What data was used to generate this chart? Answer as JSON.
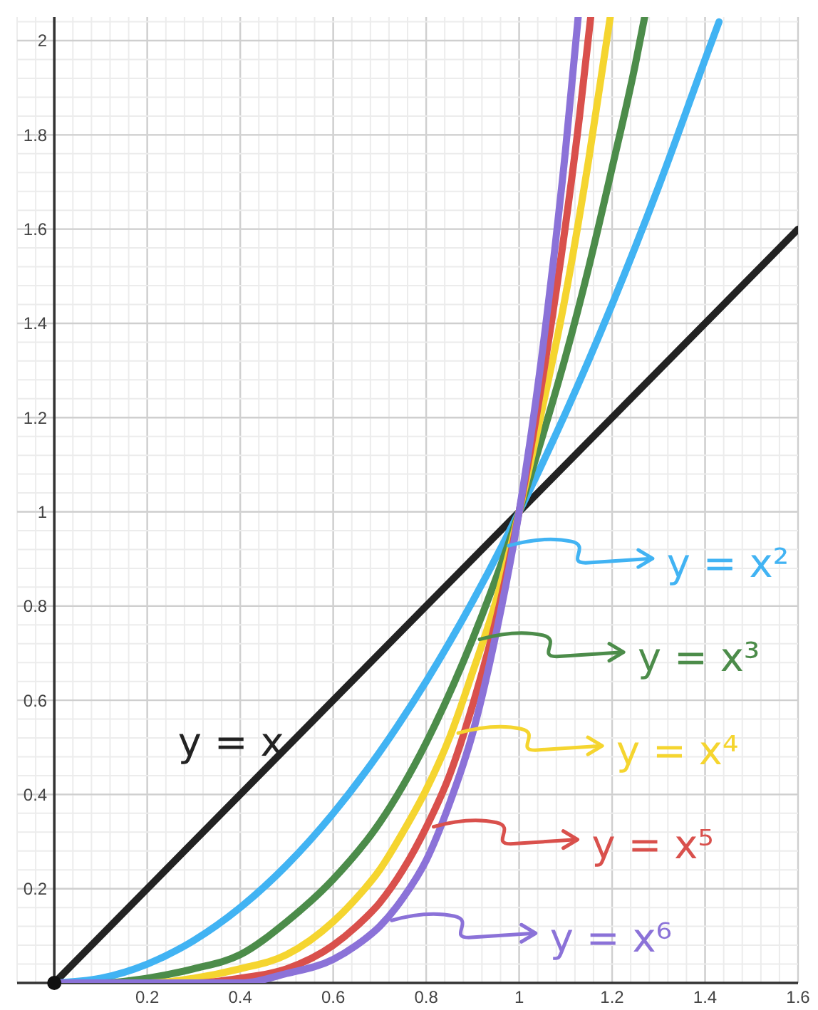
{
  "chart_data": {
    "type": "line",
    "xlim": [
      -0.08,
      1.6
    ],
    "ylim": [
      0,
      2.05
    ],
    "xticks": [
      0.2,
      0.4,
      0.6,
      0.8,
      1,
      1.2,
      1.4,
      1.6
    ],
    "yticks": [
      0.2,
      0.4,
      0.6,
      0.8,
      1,
      1.2,
      1.4,
      1.6,
      1.8,
      2
    ],
    "grid": true,
    "legend": "bottom right",
    "series": [
      {
        "name": "y = x",
        "color": "#222222",
        "x": [
          0,
          1.6
        ],
        "values": [
          0,
          1.6
        ]
      },
      {
        "name": "y = x²",
        "color": "#41b3f3",
        "x": [
          0,
          0.1,
          0.2,
          0.3,
          0.4,
          0.5,
          0.6,
          0.7,
          0.8,
          0.9,
          1,
          1.1,
          1.2,
          1.3,
          1.4,
          1.43
        ],
        "values": [
          0,
          0.01,
          0.04,
          0.09,
          0.16,
          0.25,
          0.36,
          0.49,
          0.64,
          0.81,
          1,
          1.21,
          1.44,
          1.69,
          1.96,
          2.04
        ]
      },
      {
        "name": "y = x³",
        "color": "#4c8c4a",
        "x": [
          0,
          0.1,
          0.2,
          0.3,
          0.4,
          0.5,
          0.6,
          0.7,
          0.8,
          0.9,
          1,
          1.05,
          1.1,
          1.15,
          1.2,
          1.25,
          1.27
        ],
        "values": [
          0,
          0,
          0.01,
          0.03,
          0.06,
          0.13,
          0.22,
          0.34,
          0.51,
          0.73,
          1,
          1.16,
          1.33,
          1.52,
          1.73,
          1.95,
          2.05
        ]
      },
      {
        "name": "y = x⁴",
        "color": "#f5d52f",
        "x": [
          0,
          0.1,
          0.2,
          0.3,
          0.4,
          0.5,
          0.6,
          0.65,
          0.7,
          0.75,
          0.8,
          0.85,
          0.9,
          0.95,
          1,
          1.05,
          1.1,
          1.15,
          1.196
        ],
        "values": [
          0,
          0,
          0,
          0.01,
          0.03,
          0.06,
          0.13,
          0.18,
          0.24,
          0.32,
          0.41,
          0.52,
          0.66,
          0.81,
          1,
          1.22,
          1.46,
          1.75,
          2.05
        ]
      },
      {
        "name": "y = x⁵",
        "color": "#d9504c",
        "x": [
          0.2,
          0.3,
          0.4,
          0.5,
          0.6,
          0.65,
          0.7,
          0.75,
          0.8,
          0.85,
          0.9,
          0.95,
          1,
          1.05,
          1.1,
          1.13,
          1.154
        ],
        "values": [
          0,
          0,
          0.01,
          0.03,
          0.08,
          0.12,
          0.17,
          0.24,
          0.33,
          0.44,
          0.59,
          0.77,
          1,
          1.28,
          1.61,
          1.84,
          2.05
        ]
      },
      {
        "name": "y = x⁶",
        "color": "#8b72d8",
        "x": [
          0,
          0.1,
          0.2,
          0.3,
          0.4,
          0.5,
          0.6,
          0.65,
          0.7,
          0.75,
          0.8,
          0.85,
          0.9,
          0.95,
          1,
          1.05,
          1.1,
          1.127
        ],
        "values": [
          0,
          0,
          0,
          0,
          0,
          0.02,
          0.05,
          0.08,
          0.12,
          0.18,
          0.26,
          0.38,
          0.53,
          0.74,
          1,
          1.34,
          1.77,
          2.05
        ]
      },
      {
        "type": "scatter",
        "color": "#111111",
        "x": [
          0
        ],
        "values": [
          0
        ]
      }
    ]
  }
}
